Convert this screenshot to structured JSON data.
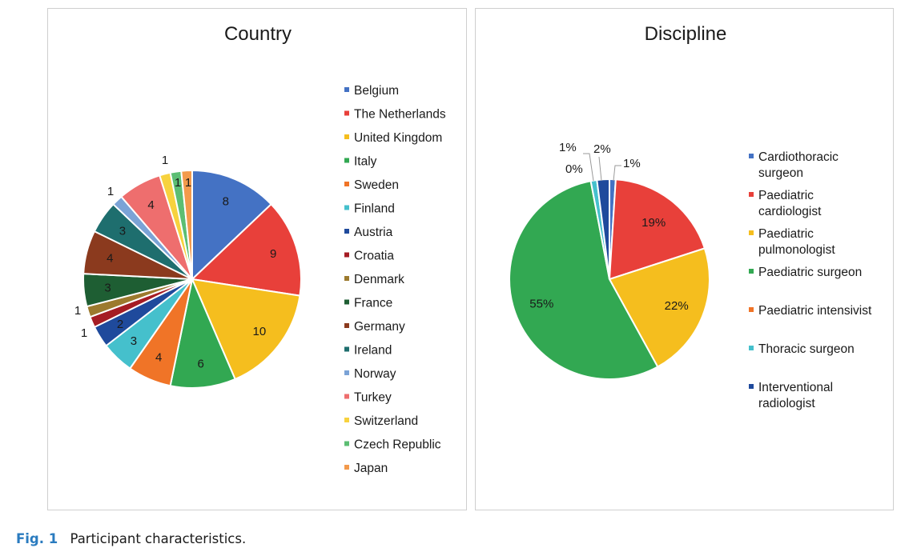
{
  "chart_data": [
    {
      "type": "pie",
      "title": "Country",
      "slices": [
        {
          "label": "Belgium",
          "value": 8,
          "display": "8",
          "color": "#4472C4"
        },
        {
          "label": "The Netherlands",
          "value": 9,
          "display": "9",
          "color": "#E8403A"
        },
        {
          "label": "United Kingdom",
          "value": 10,
          "display": "10",
          "color": "#F5BE1E"
        },
        {
          "label": "Italy",
          "value": 6,
          "display": "6",
          "color": "#32A852"
        },
        {
          "label": "Sweden",
          "value": 4,
          "display": "4",
          "color": "#F07427"
        },
        {
          "label": "Finland",
          "value": 3,
          "display": "3",
          "color": "#45C0CC"
        },
        {
          "label": "Austria",
          "value": 2,
          "display": "2",
          "color": "#1F4A9C"
        },
        {
          "label": "Croatia",
          "value": 1,
          "display": "1",
          "color": "#A51C24"
        },
        {
          "label": "Denmark",
          "value": 1,
          "display": "1",
          "color": "#9C7A2E"
        },
        {
          "label": "France",
          "value": 3,
          "display": "3",
          "color": "#1E5E33"
        },
        {
          "label": "Germany",
          "value": 4,
          "display": "4",
          "color": "#8B3A1E"
        },
        {
          "label": "Ireland",
          "value": 3,
          "display": "3",
          "color": "#1E6E6E"
        },
        {
          "label": "Norway",
          "value": 1,
          "display": "1",
          "color": "#7BA3D6"
        },
        {
          "label": "Turkey",
          "value": 4,
          "display": "4",
          "color": "#EE6E6E"
        },
        {
          "label": "Switzerland",
          "value": 1,
          "display": "1",
          "color": "#F7D23E"
        },
        {
          "label": "Czech Republic",
          "value": 1,
          "display": "1",
          "color": "#5CBE73"
        },
        {
          "label": "Japan",
          "value": 1,
          "display": "1",
          "color": "#F39A4C"
        }
      ],
      "legend_position": "right"
    },
    {
      "type": "pie",
      "title": "Discipline",
      "slices": [
        {
          "label": "Cardiothoracic surgeon",
          "label_lines": [
            "Cardiothoracic",
            "surgeon"
          ],
          "value": 1,
          "display": "1%",
          "color": "#4472C4"
        },
        {
          "label": "Paediatric cardiologist",
          "label_lines": [
            "Paediatric",
            "cardiologist"
          ],
          "value": 19,
          "display": "19%",
          "color": "#E8403A"
        },
        {
          "label": "Paediatric pulmonologist",
          "label_lines": [
            "Paediatric",
            "pulmonologist"
          ],
          "value": 22,
          "display": "22%",
          "color": "#F5BE1E"
        },
        {
          "label": "Paediatric surgeon",
          "label_lines": [
            "Paediatric surgeon"
          ],
          "value": 55,
          "display": "55%",
          "color": "#32A852"
        },
        {
          "label": "Paediatric intensivist",
          "label_lines": [
            "Paediatric intensivist"
          ],
          "value": 0,
          "display": "0%",
          "color": "#F07427"
        },
        {
          "label": "Thoracic surgeon",
          "label_lines": [
            "Thoracic surgeon"
          ],
          "value": 1,
          "display": "1%",
          "color": "#45C0CC"
        },
        {
          "label": "Interventional radiologist",
          "label_lines": [
            "Interventional",
            "radiologist"
          ],
          "value": 2,
          "display": "2%",
          "color": "#1F4A9C"
        }
      ],
      "legend_position": "right"
    }
  ],
  "caption": {
    "fig_label": "Fig. 1",
    "text": "Participant characteristics."
  }
}
